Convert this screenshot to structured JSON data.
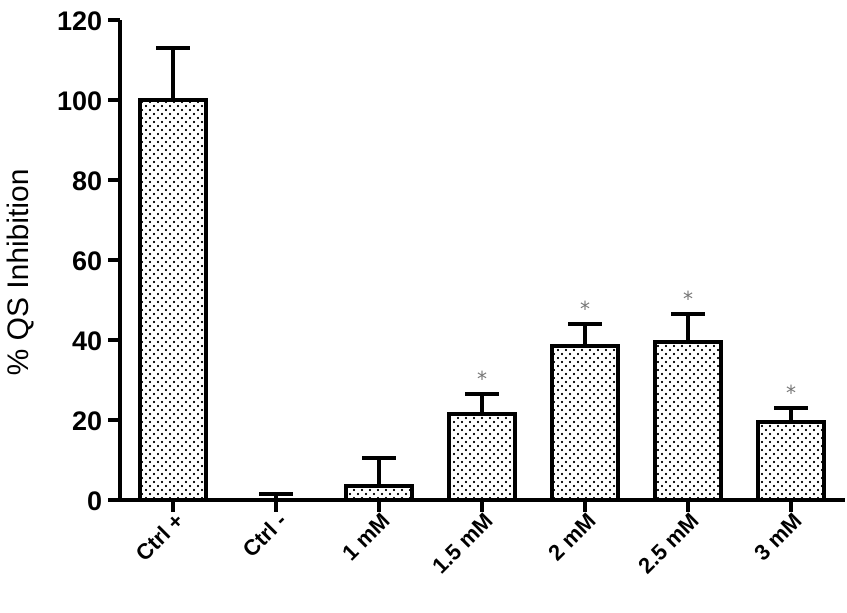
{
  "chart_data": {
    "type": "bar",
    "categories": [
      "Ctrl +",
      "Ctrl -",
      "1 mM",
      "1.5 mM",
      "2 mM",
      "2.5 mM",
      "3 mM"
    ],
    "values": [
      100,
      0,
      3.5,
      21.5,
      38.5,
      39.5,
      19.5
    ],
    "errors": [
      13,
      1.5,
      7,
      5,
      5.5,
      7,
      3.5
    ],
    "significance": [
      "",
      "",
      "",
      "*",
      "*",
      "*",
      "*"
    ],
    "ylabel": "% QS Inhibition",
    "xlabel": "",
    "ylim": [
      0,
      120
    ],
    "yticks": [
      0,
      20,
      40,
      60,
      80,
      100,
      120
    ],
    "fill_pattern": "dotted",
    "grid": false,
    "colors": {
      "bar_fill": "#ffffff",
      "bar_stroke": "#000000",
      "dots": "#000000",
      "significance": "#777777"
    }
  }
}
